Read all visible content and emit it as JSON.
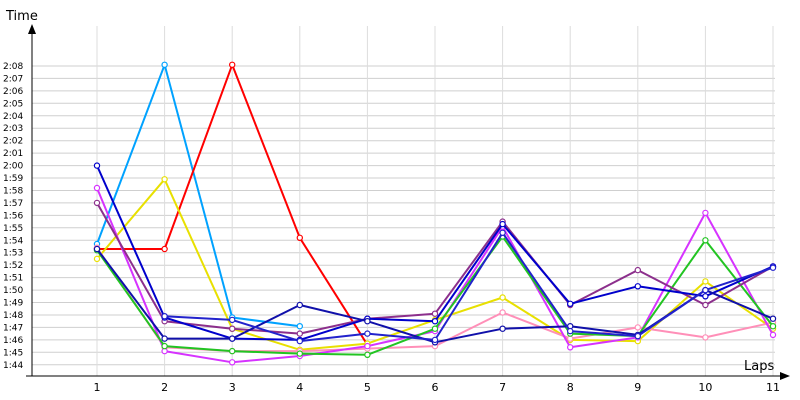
{
  "chart_data": {
    "type": "line",
    "xlabel": "Laps",
    "ylabel": "Time",
    "x": [
      1,
      2,
      3,
      4,
      5,
      6,
      7,
      8,
      9,
      10,
      11
    ],
    "x_ticks": [
      "1",
      "2",
      "3",
      "4",
      "5",
      "6",
      "7",
      "8",
      "9",
      "10",
      "11"
    ],
    "xlim": [
      1,
      11
    ],
    "ylim_seconds": [
      103,
      129
    ],
    "y_tick_labels": [
      "1:44",
      "1:45",
      "1:46",
      "1:47",
      "1:48",
      "1:49",
      "1:50",
      "1:51",
      "1:52",
      "1:53",
      "1:54",
      "1:55",
      "1:56",
      "1:57",
      "1:58",
      "1:59",
      "2:00",
      "2:01",
      "2:02",
      "2:03",
      "2:04",
      "2:05",
      "2:06",
      "2:07",
      "2:08"
    ],
    "y_tick_values_seconds": [
      104,
      105,
      106,
      107,
      108,
      109,
      110,
      111,
      112,
      113,
      114,
      115,
      116,
      117,
      118,
      119,
      120,
      121,
      122,
      123,
      124,
      125,
      126,
      127,
      128
    ],
    "grid": true,
    "legend": false,
    "series": [
      {
        "color": "#00a2ff",
        "values_seconds": [
          113.7,
          128.1,
          107.8,
          107.1,
          null,
          null,
          null,
          null,
          null,
          null,
          null
        ]
      },
      {
        "color": "#ff0000",
        "values_seconds": [
          113.3,
          113.3,
          128.1,
          114.2,
          105.6,
          null,
          null,
          null,
          null,
          null,
          null
        ]
      },
      {
        "color": "#e8e000",
        "values_seconds": [
          112.5,
          118.9,
          106.9,
          105.2,
          105.7,
          107.6,
          109.4,
          106.0,
          105.9,
          110.7,
          106.9
        ]
      },
      {
        "color": "#ff8fb8",
        "values_seconds": [
          113.4,
          105.4,
          105.1,
          105.1,
          105.3,
          105.5,
          108.2,
          106.1,
          107.0,
          106.2,
          107.4
        ]
      },
      {
        "color": "#d633ff",
        "values_seconds": [
          118.2,
          105.1,
          104.2,
          104.7,
          105.5,
          106.7,
          115.1,
          105.4,
          106.2,
          116.2,
          106.4
        ]
      },
      {
        "color": "#22c422",
        "values_seconds": [
          113.2,
          105.5,
          105.1,
          104.9,
          104.8,
          106.9,
          114.3,
          106.5,
          106.3,
          114.0,
          107.1
        ]
      },
      {
        "color": "#8c2f8c",
        "values_seconds": [
          117.0,
          107.5,
          106.9,
          106.5,
          107.7,
          108.1,
          115.5,
          108.8,
          111.6,
          108.8,
          111.9
        ]
      },
      {
        "color": "#0000cc",
        "values_seconds": [
          120.0,
          107.8,
          106.1,
          106.0,
          107.7,
          107.5,
          115.3,
          108.9,
          110.3,
          109.5,
          111.9
        ]
      },
      {
        "color": "#1010aa",
        "values_seconds": [
          113.3,
          106.1,
          106.1,
          108.8,
          107.5,
          105.8,
          106.9,
          107.1,
          106.4,
          110.0,
          107.7
        ]
      },
      {
        "color": "#2222cc",
        "values_seconds": [
          null,
          107.9,
          107.6,
          105.9,
          106.5,
          106.0,
          114.6,
          106.7,
          106.3,
          110.0,
          111.8
        ]
      }
    ]
  }
}
